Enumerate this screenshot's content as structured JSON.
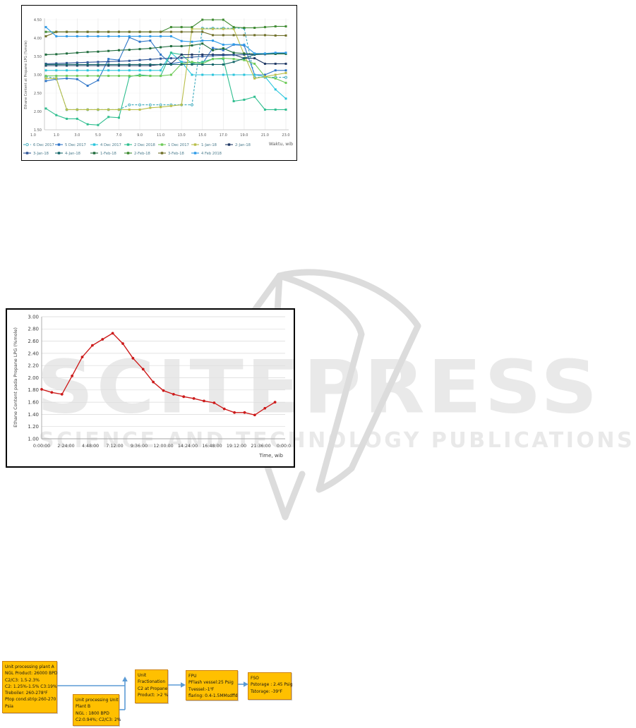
{
  "watermark": {
    "title": "SCITEPRESS",
    "subtitle": "SCIENCE AND TECHNOLOGY PUBLICATIONS",
    "color": "#E9E9E9"
  },
  "chart_data": [
    {
      "type": "line",
      "title": "",
      "ylabel": "Ethane Content at Propane LPG (%mole)",
      "xlabel": "Waktu, wib",
      "ylim": [
        1.5,
        4.5
      ],
      "yticks": [
        "1.50",
        "2.00",
        "2.50",
        "3.00",
        "3.50",
        "4.00",
        "4.50"
      ],
      "xticks": [
        "1.0",
        "1.0",
        "3.0",
        "5.0",
        "7.0",
        "9.0",
        "11.0",
        "13.0",
        "15.0",
        "17.0",
        "19.0",
        "21.0",
        "23.0"
      ],
      "x_hours": [
        0,
        1,
        2,
        3,
        4,
        5,
        6,
        7,
        8,
        9,
        10,
        11,
        12,
        13,
        14,
        15,
        16,
        17,
        18,
        19,
        20,
        21,
        22,
        23
      ],
      "grid": "vertical",
      "legend_position": "bottom",
      "series": [
        {
          "name": "6 Dec 2017",
          "color": "#3AA9BC",
          "dashed": true,
          "marker": "open-circle",
          "values": [
            2.95,
            2.9,
            2.05,
            2.05,
            2.05,
            2.05,
            2.05,
            2.05,
            2.18,
            2.18,
            2.18,
            2.18,
            2.18,
            2.18,
            2.18,
            4.27,
            4.27,
            4.27,
            4.27,
            4.27,
            2.93,
            2.93,
            2.93,
            2.93
          ]
        },
        {
          "name": "5 Dec 2017",
          "color": "#2E75C8",
          "dashed": false,
          "marker": "square",
          "values": [
            2.83,
            2.88,
            2.9,
            2.88,
            2.7,
            2.85,
            3.43,
            3.4,
            4.02,
            3.9,
            3.93,
            3.55,
            3.3,
            3.35,
            3.33,
            3.3,
            3.73,
            3.67,
            3.82,
            3.8,
            3.0,
            3.0,
            3.12,
            3.12
          ]
        },
        {
          "name": "4 Dec 2017",
          "color": "#29C5DC",
          "dashed": false,
          "marker": "square",
          "values": [
            3.12,
            3.12,
            3.12,
            3.12,
            3.12,
            3.12,
            3.12,
            3.12,
            3.12,
            3.12,
            3.12,
            3.12,
            3.6,
            3.35,
            3.0,
            3.0,
            3.0,
            3.0,
            3.0,
            3.0,
            3.0,
            2.95,
            2.6,
            2.35
          ]
        },
        {
          "name": "2 Dec 2018",
          "color": "#2FBE8F",
          "dashed": false,
          "marker": "square",
          "values": [
            2.08,
            1.9,
            1.8,
            1.8,
            1.65,
            1.63,
            1.85,
            1.83,
            2.95,
            3.0,
            2.97,
            2.97,
            3.6,
            3.55,
            3.3,
            3.35,
            3.43,
            3.43,
            2.28,
            2.32,
            2.4,
            2.05,
            2.05,
            2.05
          ]
        },
        {
          "name": "1 Dec 2017",
          "color": "#6FCB5A",
          "dashed": false,
          "marker": "square",
          "values": [
            2.97,
            2.97,
            2.97,
            2.97,
            2.97,
            2.97,
            2.97,
            2.97,
            2.97,
            2.97,
            2.97,
            2.97,
            3.0,
            3.3,
            3.35,
            3.3,
            3.43,
            3.45,
            3.43,
            3.4,
            3.3,
            2.95,
            2.9,
            2.78
          ]
        },
        {
          "name": "1-Jan-18",
          "color": "#B9BE4A",
          "dashed": false,
          "marker": "square",
          "values": [
            2.9,
            2.9,
            2.05,
            2.05,
            2.05,
            2.05,
            2.05,
            2.05,
            2.05,
            2.05,
            2.1,
            2.12,
            2.15,
            2.18,
            4.25,
            4.25,
            4.25,
            4.25,
            4.25,
            3.55,
            2.9,
            2.95,
            3.0,
            3.05
          ]
        },
        {
          "name": "2-Jan-18",
          "color": "#1F3864",
          "dashed": false,
          "marker": "square",
          "values": [
            3.25,
            3.25,
            3.25,
            3.25,
            3.25,
            3.25,
            3.25,
            3.25,
            3.25,
            3.25,
            3.25,
            3.28,
            3.3,
            3.55,
            3.55,
            3.55,
            3.55,
            3.55,
            3.55,
            3.45,
            3.45,
            3.3,
            3.3,
            3.3
          ]
        },
        {
          "name": "3-Jan-18",
          "color": "#2F5597",
          "dashed": false,
          "marker": "square",
          "values": [
            3.3,
            3.31,
            3.32,
            3.33,
            3.34,
            3.35,
            3.36,
            3.37,
            3.38,
            3.4,
            3.42,
            3.44,
            3.45,
            3.46,
            3.48,
            3.5,
            3.52,
            3.53,
            3.54,
            3.55,
            3.55,
            3.56,
            3.57,
            3.58
          ]
        },
        {
          "name": "4-Jan-18",
          "color": "#17686B",
          "dashed": false,
          "marker": "square",
          "values": [
            3.28,
            3.28,
            3.28,
            3.28,
            3.28,
            3.28,
            3.28,
            3.28,
            3.28,
            3.28,
            3.28,
            3.28,
            3.28,
            3.28,
            3.28,
            3.28,
            3.28,
            3.28,
            3.35,
            3.45,
            3.55,
            3.57,
            3.58,
            3.58
          ]
        },
        {
          "name": "1-Feb-18",
          "color": "#1E6B3C",
          "dashed": false,
          "marker": "square",
          "values": [
            3.55,
            3.56,
            3.58,
            3.6,
            3.62,
            3.63,
            3.65,
            3.67,
            3.68,
            3.7,
            3.72,
            3.75,
            3.78,
            3.78,
            3.8,
            3.85,
            3.67,
            3.72,
            3.6,
            3.58,
            3.57,
            3.57,
            3.57,
            3.57
          ]
        },
        {
          "name": "2-Feb-18",
          "color": "#3D8A30",
          "dashed": false,
          "marker": "square",
          "values": [
            4.17,
            4.17,
            4.17,
            4.17,
            4.17,
            4.17,
            4.17,
            4.17,
            4.17,
            4.17,
            4.17,
            4.17,
            4.3,
            4.3,
            4.3,
            4.5,
            4.5,
            4.5,
            4.3,
            4.28,
            4.28,
            4.3,
            4.32,
            4.32
          ]
        },
        {
          "name": "3-Feb-18",
          "color": "#6F6F28",
          "dashed": false,
          "marker": "square",
          "values": [
            4.05,
            4.17,
            4.17,
            4.17,
            4.17,
            4.17,
            4.17,
            4.17,
            4.17,
            4.17,
            4.17,
            4.17,
            4.17,
            4.17,
            4.17,
            4.17,
            4.08,
            4.08,
            4.08,
            4.08,
            4.08,
            4.08,
            4.07,
            4.07
          ]
        },
        {
          "name": "4 Feb 2018",
          "color": "#2E9BE8",
          "dashed": false,
          "marker": "square",
          "values": [
            4.3,
            4.05,
            4.05,
            4.05,
            4.05,
            4.05,
            4.05,
            4.05,
            4.05,
            4.05,
            4.05,
            4.05,
            4.05,
            3.92,
            3.9,
            3.93,
            3.93,
            3.82,
            3.83,
            3.82,
            3.58,
            3.58,
            3.6,
            3.6
          ]
        }
      ]
    },
    {
      "type": "line",
      "title": "",
      "ylabel": "Ethane Content pada Propane LPG (%mole)",
      "xlabel": "Time, wib",
      "ylim": [
        1.0,
        3.0
      ],
      "yticks": [
        "1.00",
        "1.20",
        "1.40",
        "1.60",
        "1.80",
        "2.00",
        "2.20",
        "2.40",
        "2.60",
        "2.80",
        "3.00"
      ],
      "xticks": [
        "0:00:00",
        "2:24:00",
        "4:48:00",
        "7:12:00",
        "9:36:00",
        "12:00:00",
        "14:24:00",
        "16:48:00",
        "19:12:00",
        "21:36:00",
        "0:00:00"
      ],
      "grid": "horizontal",
      "legend_position": "none",
      "series": [
        {
          "name": "Ethane content",
          "color": "#CC1A1A",
          "dashed": false,
          "marker": "circle",
          "values": [
            1.81,
            1.76,
            1.73,
            2.03,
            2.34,
            2.53,
            2.63,
            2.73,
            2.56,
            2.32,
            2.14,
            1.93,
            1.79,
            1.73,
            1.69,
            1.66,
            1.62,
            1.59,
            1.49,
            1.43,
            1.43,
            1.39,
            1.5,
            1.6
          ]
        }
      ]
    }
  ],
  "flow_diagram": {
    "box_fill": "#FFC000",
    "box_border": "#CE8310",
    "arrow_color": "#5B9BD5",
    "boxes": [
      {
        "id": "plant-a",
        "lines": [
          "Unit processing  plant A",
          "NGL Product: 26000 BPD",
          "C2/C3: 1.5-2.3%",
          "C2: 1.25%-1.5% C3:19%",
          "Treboiler: 260-278⁰F",
          "Ptop cond.strip:260-270",
          "Psia"
        ]
      },
      {
        "id": "plant-b",
        "lines": [
          "Unit processing Unit",
          "Plant B",
          "NGL : 1800 BPD",
          "C2:0.94%; C2/C3: 2%"
        ]
      },
      {
        "id": "fractionation",
        "lines": [
          "Unit",
          "Fractionation",
          "C2 at Propane",
          "Product: >2 %"
        ]
      },
      {
        "id": "fpu",
        "lines": [
          "FPU",
          "PFlash vessel:25 Psig",
          "Tvessel:-1⁰F",
          "flaring: 0.4-1.5MMsdffd"
        ]
      },
      {
        "id": "fso",
        "lines": [
          "FSO",
          "Pstorage : 2.45 Psig",
          "Tstorage: -39⁰F"
        ]
      }
    ]
  }
}
